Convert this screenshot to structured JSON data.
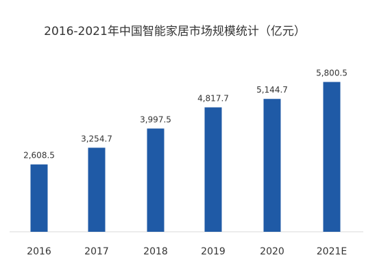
{
  "chart_data": {
    "type": "bar",
    "title": "2016-2021年中国智能家居市场规模统计（亿元）",
    "categories": [
      "2016",
      "2017",
      "2018",
      "2019",
      "2020",
      "2021E"
    ],
    "values": [
      2608.5,
      3254.7,
      3997.5,
      4817.7,
      5144.7,
      5800.5
    ],
    "value_labels": [
      "2,608.5",
      "3,254.7",
      "3,997.5",
      "4,817.7",
      "5,144.7",
      "5,800.5"
    ],
    "xlabel": "",
    "ylabel": "",
    "ylim": [
      0,
      6000
    ],
    "grid": false,
    "legend": "none",
    "bar_color": "#1f5aa6",
    "axis_color": "#d9d9d9"
  }
}
